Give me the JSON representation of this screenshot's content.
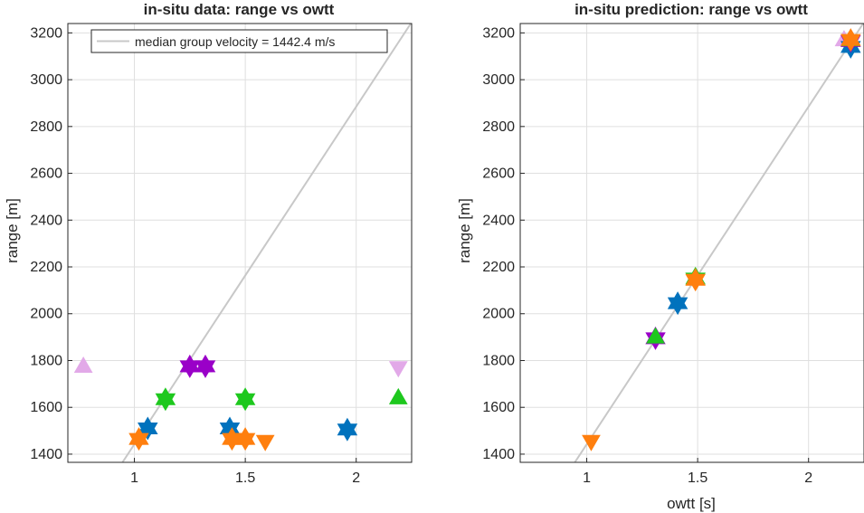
{
  "colors": {
    "axis": "#262626",
    "grid": "#dfdfdf",
    "fit_line": "#c8c8c8",
    "blue": "#0072bd",
    "orange": "#ff7f0e",
    "green": "#1ec81e",
    "purple": "#9a00c8",
    "pink": "#e2a9e8"
  },
  "chart_data": [
    {
      "type": "scatter",
      "title": "in-situ data: range vs owtt",
      "xlabel": "",
      "ylabel": "range [m]",
      "xlim": [
        0.7,
        2.25
      ],
      "ylim": [
        1365,
        3240
      ],
      "xticks": [
        1,
        1.5,
        2
      ],
      "xtick_labels": [
        "1",
        "1.5",
        "2"
      ],
      "yticks": [
        1400,
        1600,
        1800,
        2000,
        2200,
        2400,
        2600,
        2800,
        3000,
        3200
      ],
      "ytick_labels": [
        "1400",
        "1600",
        "1800",
        "2000",
        "2200",
        "2400",
        "2600",
        "2800",
        "3000",
        "3200"
      ],
      "grid": true,
      "legend": {
        "location": "top-right",
        "entries": [
          "median group velocity = 1442.4 m/s"
        ]
      },
      "line": {
        "slope": 1442.4
      },
      "points": [
        {
          "x": 0.77,
          "y": 1775,
          "marker": "triangle-up",
          "color": "pink"
        },
        {
          "x": 2.19,
          "y": 1770,
          "marker": "triangle-down",
          "color": "pink"
        },
        {
          "x": 1.25,
          "y": 1775,
          "marker": "hexagram",
          "color": "purple"
        },
        {
          "x": 1.32,
          "y": 1775,
          "marker": "hexagram",
          "color": "purple"
        },
        {
          "x": 1.14,
          "y": 1635,
          "marker": "hexagram",
          "color": "green"
        },
        {
          "x": 1.5,
          "y": 1635,
          "marker": "hexagram",
          "color": "green"
        },
        {
          "x": 2.19,
          "y": 1640,
          "marker": "triangle-up",
          "color": "green"
        },
        {
          "x": 1.06,
          "y": 1510,
          "marker": "hexagram",
          "color": "blue"
        },
        {
          "x": 1.43,
          "y": 1510,
          "marker": "hexagram",
          "color": "blue"
        },
        {
          "x": 1.96,
          "y": 1505,
          "marker": "hexagram",
          "color": "blue"
        },
        {
          "x": 1.02,
          "y": 1465,
          "marker": "hexagram",
          "color": "orange"
        },
        {
          "x": 1.44,
          "y": 1465,
          "marker": "hexagram",
          "color": "orange"
        },
        {
          "x": 1.5,
          "y": 1465,
          "marker": "hexagram",
          "color": "orange"
        },
        {
          "x": 1.59,
          "y": 1455,
          "marker": "triangle-down",
          "color": "orange"
        }
      ]
    },
    {
      "type": "scatter",
      "title": "in-situ prediction: range vs owtt",
      "xlabel": "owtt [s]",
      "ylabel": "range [m]",
      "xlim": [
        0.7,
        2.25
      ],
      "ylim": [
        1365,
        3240
      ],
      "xticks": [
        1,
        1.5,
        2
      ],
      "xtick_labels": [
        "1",
        "1.5",
        "2"
      ],
      "yticks": [
        1400,
        1600,
        1800,
        2000,
        2200,
        2400,
        2600,
        2800,
        3000,
        3200
      ],
      "ytick_labels": [
        "1400",
        "1600",
        "1800",
        "2000",
        "2200",
        "2400",
        "2600",
        "2800",
        "3000",
        "3200"
      ],
      "grid": true,
      "line": {
        "slope": 1442.4
      },
      "points": [
        {
          "x": 1.02,
          "y": 1455,
          "marker": "triangle-down",
          "color": "orange"
        },
        {
          "x": 1.31,
          "y": 1895,
          "marker": "hexagram",
          "color": "purple"
        },
        {
          "x": 1.31,
          "y": 1900,
          "marker": "triangle-up",
          "color": "green"
        },
        {
          "x": 1.41,
          "y": 2045,
          "marker": "hexagram",
          "color": "blue"
        },
        {
          "x": 1.49,
          "y": 2150,
          "marker": "hexagram",
          "color": "green"
        },
        {
          "x": 1.49,
          "y": 2145,
          "marker": "hexagram",
          "color": "orange"
        },
        {
          "x": 2.16,
          "y": 3170,
          "marker": "triangle-up",
          "color": "pink"
        },
        {
          "x": 2.19,
          "y": 3140,
          "marker": "hexagram",
          "color": "blue"
        },
        {
          "x": 2.19,
          "y": 3165,
          "marker": "hexagram",
          "color": "purple"
        },
        {
          "x": 2.19,
          "y": 3170,
          "marker": "triangle-up",
          "color": "green"
        },
        {
          "x": 2.19,
          "y": 3170,
          "marker": "hexagram",
          "color": "orange"
        }
      ]
    }
  ]
}
